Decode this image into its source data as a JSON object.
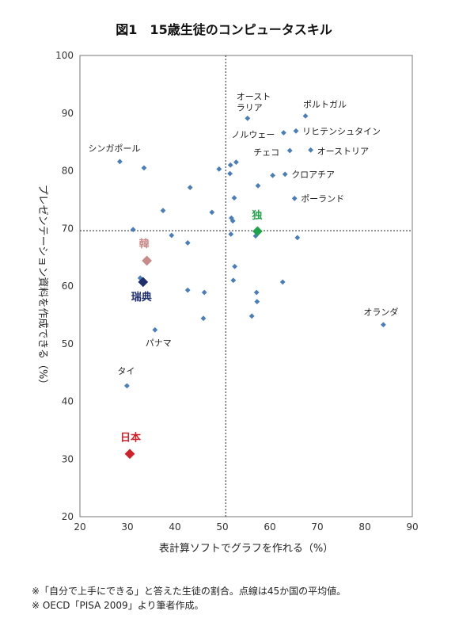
{
  "chart_data": {
    "type": "scatter",
    "title": "図1　15歳生徒のコンピュータスキル",
    "xlabel": "表計算ソフトでグラフを作れる（%）",
    "ylabel": "プレゼンテーション資料を作成できる（%）",
    "xlim": [
      20,
      90
    ],
    "ylim": [
      20,
      100
    ],
    "xticks": [
      20,
      30,
      40,
      50,
      60,
      70,
      80,
      90
    ],
    "yticks": [
      20,
      30,
      40,
      50,
      60,
      70,
      80,
      90,
      100
    ],
    "reference_lines": {
      "x": 50.7,
      "y": 69.6,
      "style": "dotted"
    },
    "grid": false,
    "colors": {
      "default": "#4a7ebb",
      "japan": "#d0202a",
      "korea": "#c98a8a",
      "germany": "#1ea34a",
      "sweden": "#1f2f6e"
    },
    "points": [
      {
        "x": 67.5,
        "y": 89.5,
        "label": "ポルトガル"
      },
      {
        "x": 55.3,
        "y": 89.1,
        "label": "オースト\nラリア"
      },
      {
        "x": 62.9,
        "y": 86.6,
        "label": "ノルウェー"
      },
      {
        "x": 65.5,
        "y": 86.9,
        "label": "リヒテンシュタイン"
      },
      {
        "x": 64.2,
        "y": 83.5,
        "label": "チェコ"
      },
      {
        "x": 68.6,
        "y": 83.6,
        "label": "オーストリア"
      },
      {
        "x": 63.2,
        "y": 79.4,
        "label": "クロアチア"
      },
      {
        "x": 65.2,
        "y": 75.2,
        "label": "ポーランド"
      },
      {
        "x": 28.4,
        "y": 81.6,
        "label": "シンガポール"
      },
      {
        "x": 83.9,
        "y": 53.3,
        "label": "オランダ"
      },
      {
        "x": 35.8,
        "y": 52.4,
        "label": "パナマ"
      },
      {
        "x": 29.9,
        "y": 42.7,
        "label": "タイ"
      },
      {
        "x": 33.5,
        "y": 80.5,
        "label": ""
      },
      {
        "x": 43.2,
        "y": 77.1,
        "label": ""
      },
      {
        "x": 37.5,
        "y": 73.1,
        "label": ""
      },
      {
        "x": 31.2,
        "y": 69.8,
        "label": ""
      },
      {
        "x": 39.3,
        "y": 68.8,
        "label": ""
      },
      {
        "x": 42.7,
        "y": 67.5,
        "label": ""
      },
      {
        "x": 32.7,
        "y": 61.4,
        "label": ""
      },
      {
        "x": 42.7,
        "y": 59.3,
        "label": ""
      },
      {
        "x": 46.2,
        "y": 58.9,
        "label": ""
      },
      {
        "x": 46.0,
        "y": 54.4,
        "label": ""
      },
      {
        "x": 47.8,
        "y": 72.8,
        "label": ""
      },
      {
        "x": 49.3,
        "y": 80.3,
        "label": ""
      },
      {
        "x": 51.7,
        "y": 81.0,
        "label": ""
      },
      {
        "x": 51.6,
        "y": 79.5,
        "label": ""
      },
      {
        "x": 52.9,
        "y": 81.5,
        "label": ""
      },
      {
        "x": 52.5,
        "y": 75.3,
        "label": ""
      },
      {
        "x": 51.9,
        "y": 71.8,
        "label": ""
      },
      {
        "x": 52.2,
        "y": 71.3,
        "label": ""
      },
      {
        "x": 51.8,
        "y": 69.0,
        "label": ""
      },
      {
        "x": 52.6,
        "y": 63.4,
        "label": ""
      },
      {
        "x": 52.3,
        "y": 61.0,
        "label": ""
      },
      {
        "x": 57.2,
        "y": 58.9,
        "label": ""
      },
      {
        "x": 57.3,
        "y": 57.3,
        "label": ""
      },
      {
        "x": 56.2,
        "y": 54.8,
        "label": ""
      },
      {
        "x": 57.0,
        "y": 68.7,
        "label": ""
      },
      {
        "x": 57.5,
        "y": 77.4,
        "label": ""
      },
      {
        "x": 60.6,
        "y": 79.2,
        "label": ""
      },
      {
        "x": 62.7,
        "y": 60.7,
        "label": ""
      },
      {
        "x": 65.8,
        "y": 68.4,
        "label": ""
      }
    ],
    "highlighted": [
      {
        "x": 57.4,
        "y": 69.5,
        "label": "独",
        "color_key": "germany"
      },
      {
        "x": 34.1,
        "y": 64.4,
        "label": "韓",
        "color_key": "korea"
      },
      {
        "x": 33.3,
        "y": 60.7,
        "label": "瑞典",
        "color_key": "sweden"
      },
      {
        "x": 30.5,
        "y": 30.9,
        "label": "日本",
        "color_key": "japan"
      }
    ]
  },
  "footnotes": [
    "※「自分で上手にできる」と答えた生徒の割合。点線は45か国の平均値。",
    "※ OECD「PISA 2009」より筆者作成。"
  ]
}
